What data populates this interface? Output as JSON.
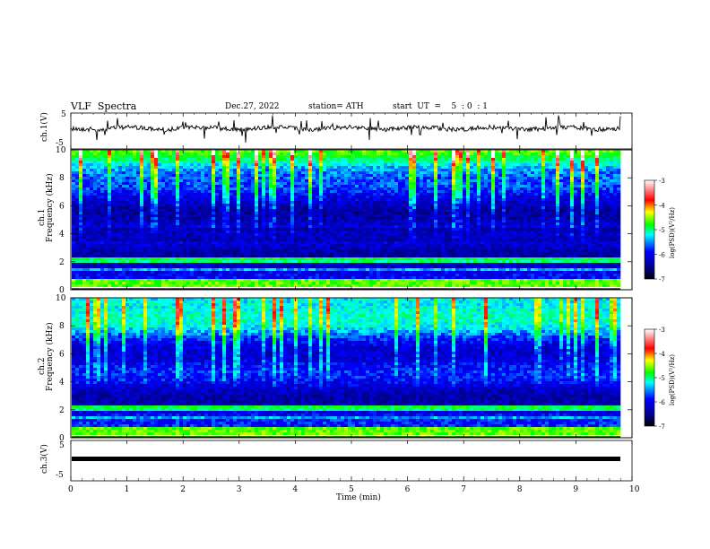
{
  "header": {
    "title": "VLF  Spectra",
    "date": "Dec.27, 2022",
    "station": "station= ATH",
    "start": "start  UT  =    5  : 0  : 1"
  },
  "chart_data": [
    {
      "type": "line",
      "panel": "ch1-waveform",
      "ylabel": "ch.1(V)",
      "ylim": [
        -5,
        5
      ],
      "yticks": [
        "5",
        "-5"
      ],
      "xlim": [
        0,
        10
      ],
      "note_trace_color": "#000000"
    },
    {
      "type": "heatmap",
      "panel": "ch1-spectrogram",
      "ylabel": "ch.1\nFrequency  (kHz)",
      "ylabel_line1": "ch.1",
      "ylabel_line2": "Frequency  (kHz)",
      "ylim": [
        0,
        10
      ],
      "yticks": [
        "0",
        "2",
        "4",
        "6",
        "8",
        "10"
      ],
      "xlim": [
        0,
        9.8
      ],
      "colorbar": {
        "label": "log(PSD)(V²/Hz)",
        "range": [
          -7,
          -3
        ],
        "ticks": [
          "-3",
          "-4",
          "-5",
          "-6",
          "-7"
        ],
        "colors": [
          "#ffffff",
          "#ff0000",
          "#ffff00",
          "#00ff00",
          "#00ffff",
          "#0000ff",
          "#00008b",
          "#000000"
        ]
      }
    },
    {
      "type": "heatmap",
      "panel": "ch2-spectrogram",
      "ylabel_line1": "ch.2",
      "ylabel_line2": "Frequency  (kHz)",
      "ylim": [
        0,
        10
      ],
      "yticks": [
        "0",
        "2",
        "4",
        "6",
        "8",
        "10"
      ],
      "xlim": [
        0,
        9.8
      ],
      "colorbar": {
        "label": "log(PSD)(V²/Hz)",
        "range": [
          -7,
          -3
        ],
        "ticks": [
          "-3",
          "-4",
          "-5",
          "-6",
          "-7"
        ]
      }
    },
    {
      "type": "line",
      "panel": "ch3-waveform",
      "ylabel": "ch.3(V)",
      "ylim": [
        -5,
        5
      ],
      "yticks": [
        "5",
        "-5"
      ],
      "xlim": [
        0,
        10
      ],
      "xlabel": "Time  (min)",
      "xticks": [
        "0",
        "1",
        "2",
        "3",
        "4",
        "5",
        "6",
        "7",
        "8",
        "9",
        "10"
      ],
      "trace_value_approx": -1.5
    }
  ]
}
